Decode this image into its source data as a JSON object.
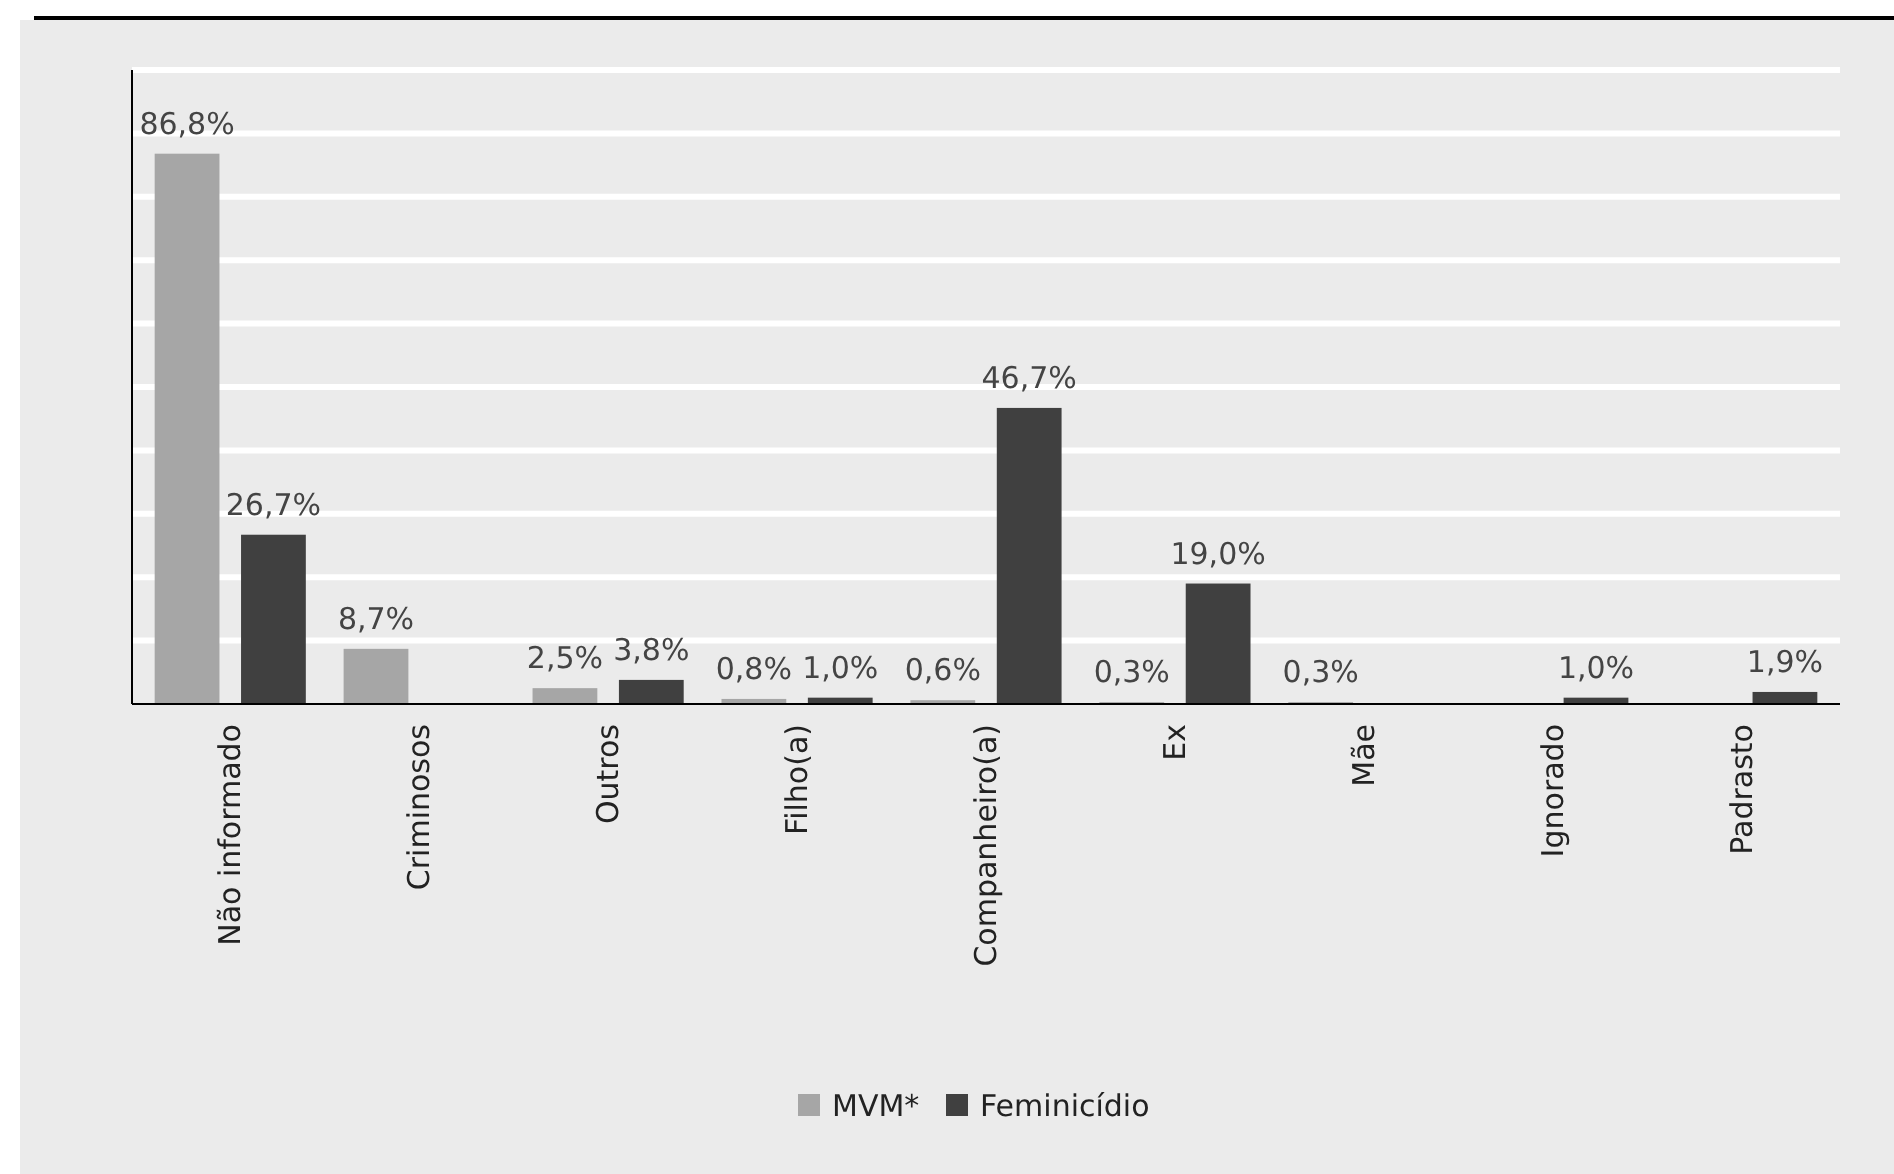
{
  "chart_data": {
    "type": "bar",
    "categories": [
      "Não informado",
      "Criminosos",
      "Outros",
      "Filho(a)",
      "Companheiro(a)",
      "Ex",
      "Mãe",
      "Ignorado",
      "Padrasto"
    ],
    "series": [
      {
        "name": "MVM*",
        "color": "#a6a6a6",
        "values": [
          86.8,
          8.7,
          2.5,
          0.8,
          0.6,
          0.3,
          0.3,
          null,
          null
        ],
        "value_labels": [
          "86,8%",
          "8,7%",
          "2,5%",
          "0,8%",
          "0,6%",
          "0,3%",
          "0,3%",
          null,
          null
        ]
      },
      {
        "name": "Feminicídio",
        "color": "#404040",
        "values": [
          26.7,
          null,
          3.8,
          1.0,
          46.7,
          19.0,
          null,
          1.0,
          1.9
        ],
        "value_labels": [
          "26,7%",
          null,
          "3,8%",
          "1,0%",
          "46,7%",
          "19,0%",
          null,
          "1,0%",
          "1,9%"
        ]
      }
    ],
    "ylim": [
      0,
      100
    ],
    "yticks": [
      {
        "value": 10,
        "label": null
      },
      {
        "value": 20,
        "label": null
      },
      {
        "value": 30,
        "label": null
      },
      {
        "value": 40,
        "label": null
      },
      {
        "value": 50,
        "label": null
      },
      {
        "value": 60,
        "label": null
      },
      {
        "value": 70,
        "label": null
      },
      {
        "value": 80,
        "label": null
      },
      {
        "value": 90,
        "label": null
      },
      {
        "value": 100,
        "label": null
      }
    ],
    "grid": "y",
    "legend": "bottom",
    "tick_labels": "x"
  }
}
